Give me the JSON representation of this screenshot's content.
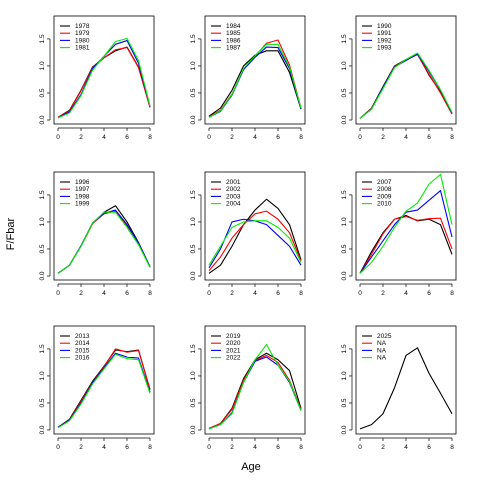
{
  "figure": {
    "xlabel": "Age",
    "ylabel": "F/Fbar"
  },
  "colors": [
    "#000000",
    "#ff0000",
    "#0000ff",
    "#00ee00"
  ],
  "chart_data": [
    {
      "type": "line",
      "xlim": [
        0,
        8
      ],
      "ylim": [
        0,
        1.85
      ],
      "x_ticks": [
        0,
        2,
        4,
        6,
        8
      ],
      "y_ticks": [
        0.0,
        0.5,
        1.0,
        1.5
      ],
      "y_tick_labels": [
        "0.0",
        "0.5",
        "1.0",
        "1.5"
      ],
      "legend_position": "top-left",
      "x": [
        0,
        1,
        2,
        3,
        4,
        5,
        6,
        7,
        8
      ],
      "series": [
        {
          "name": "1978",
          "values": [
            0.05,
            0.18,
            0.55,
            0.98,
            1.15,
            1.28,
            1.35,
            0.98,
            0.24
          ]
        },
        {
          "name": "1979",
          "values": [
            0.05,
            0.17,
            0.54,
            0.97,
            1.15,
            1.3,
            1.34,
            0.97,
            0.23
          ]
        },
        {
          "name": "1980",
          "values": [
            0.04,
            0.15,
            0.47,
            0.95,
            1.18,
            1.4,
            1.47,
            1.05,
            0.25
          ]
        },
        {
          "name": "1981",
          "values": [
            0.04,
            0.13,
            0.45,
            0.92,
            1.18,
            1.45,
            1.51,
            1.1,
            0.26
          ]
        }
      ]
    },
    {
      "type": "line",
      "xlim": [
        0,
        8
      ],
      "ylim": [
        0,
        1.85
      ],
      "x_ticks": [
        0,
        2,
        4,
        6,
        8
      ],
      "y_ticks": [
        0.0,
        0.5,
        1.0,
        1.5
      ],
      "y_tick_labels": [
        "0.0",
        "0.5",
        "1.0",
        "1.5"
      ],
      "legend_position": "top-left",
      "x": [
        0,
        1,
        2,
        3,
        4,
        5,
        6,
        7,
        8
      ],
      "series": [
        {
          "name": "1984",
          "values": [
            0.07,
            0.22,
            0.55,
            1.0,
            1.2,
            1.28,
            1.28,
            0.88,
            0.2
          ]
        },
        {
          "name": "1985",
          "values": [
            0.06,
            0.18,
            0.48,
            0.94,
            1.18,
            1.42,
            1.48,
            1.02,
            0.22
          ]
        },
        {
          "name": "1986",
          "values": [
            0.05,
            0.16,
            0.46,
            0.93,
            1.16,
            1.35,
            1.34,
            0.95,
            0.21
          ]
        },
        {
          "name": "1987",
          "values": [
            0.05,
            0.17,
            0.47,
            0.95,
            1.19,
            1.4,
            1.4,
            0.98,
            0.22
          ]
        }
      ]
    },
    {
      "type": "line",
      "xlim": [
        0,
        8
      ],
      "ylim": [
        0,
        1.85
      ],
      "x_ticks": [
        0,
        2,
        4,
        6,
        8
      ],
      "y_ticks": [
        0.0,
        0.5,
        1.0,
        1.5
      ],
      "y_tick_labels": [
        "0.0",
        "0.5",
        "1.0",
        "1.5"
      ],
      "legend_position": "top-left",
      "x": [
        0,
        1,
        2,
        3,
        4,
        5,
        6,
        7,
        8
      ],
      "series": [
        {
          "name": "1990",
          "values": [
            0.03,
            0.22,
            0.62,
            1.0,
            1.12,
            1.22,
            0.83,
            0.52,
            0.12
          ]
        },
        {
          "name": "1991",
          "values": [
            0.03,
            0.21,
            0.6,
            0.99,
            1.11,
            1.21,
            0.85,
            0.5,
            0.11
          ]
        },
        {
          "name": "1992",
          "values": [
            0.03,
            0.2,
            0.6,
            0.98,
            1.1,
            1.22,
            0.9,
            0.55,
            0.13
          ]
        },
        {
          "name": "1993",
          "values": [
            0.03,
            0.2,
            0.58,
            0.97,
            1.12,
            1.24,
            0.92,
            0.56,
            0.14
          ]
        }
      ]
    },
    {
      "type": "line",
      "xlim": [
        0,
        8
      ],
      "ylim": [
        0,
        1.85
      ],
      "x_ticks": [
        0,
        2,
        4,
        6,
        8
      ],
      "y_ticks": [
        0.0,
        0.5,
        1.0,
        1.5
      ],
      "y_tick_labels": [
        "0.0",
        "0.5",
        "1.0",
        "1.5"
      ],
      "legend_position": "top-left",
      "x": [
        0,
        1,
        2,
        3,
        4,
        5,
        6,
        7,
        8
      ],
      "series": [
        {
          "name": "1996",
          "values": [
            0.05,
            0.2,
            0.55,
            0.97,
            1.18,
            1.3,
            1.0,
            0.62,
            0.17
          ]
        },
        {
          "name": "1997",
          "values": [
            0.05,
            0.2,
            0.56,
            0.97,
            1.15,
            1.2,
            0.92,
            0.6,
            0.16
          ]
        },
        {
          "name": "1998",
          "values": [
            0.05,
            0.2,
            0.56,
            0.98,
            1.16,
            1.22,
            0.95,
            0.61,
            0.17
          ]
        },
        {
          "name": "1999",
          "values": [
            0.05,
            0.2,
            0.55,
            0.98,
            1.18,
            1.18,
            0.9,
            0.58,
            0.16
          ]
        }
      ]
    },
    {
      "type": "line",
      "xlim": [
        0,
        8
      ],
      "ylim": [
        0,
        1.85
      ],
      "x_ticks": [
        0,
        2,
        4,
        6,
        8
      ],
      "y_ticks": [
        0.0,
        0.5,
        1.0,
        1.5
      ],
      "y_tick_labels": [
        "0.0",
        "0.5",
        "1.0",
        "1.5"
      ],
      "legend_position": "top-left",
      "x": [
        0,
        1,
        2,
        3,
        4,
        5,
        6,
        7,
        8
      ],
      "series": [
        {
          "name": "2001",
          "values": [
            0.05,
            0.2,
            0.55,
            0.95,
            1.22,
            1.42,
            1.25,
            0.95,
            0.3
          ]
        },
        {
          "name": "2002",
          "values": [
            0.1,
            0.35,
            0.7,
            0.95,
            1.15,
            1.2,
            1.05,
            0.8,
            0.28
          ]
        },
        {
          "name": "2003",
          "values": [
            0.15,
            0.5,
            1.0,
            1.05,
            1.02,
            0.95,
            0.75,
            0.55,
            0.2
          ]
        },
        {
          "name": "2004",
          "values": [
            0.2,
            0.55,
            0.9,
            1.0,
            1.02,
            1.02,
            0.9,
            0.7,
            0.25
          ]
        }
      ]
    },
    {
      "type": "line",
      "xlim": [
        0,
        8
      ],
      "ylim": [
        0,
        1.85
      ],
      "x_ticks": [
        0,
        2,
        4,
        6,
        8
      ],
      "y_ticks": [
        0.0,
        0.5,
        1.0,
        1.5
      ],
      "y_tick_labels": [
        "0.0",
        "0.5",
        "1.0",
        "1.5"
      ],
      "legend_position": "top-left",
      "x": [
        0,
        1,
        2,
        3,
        4,
        5,
        6,
        7,
        8
      ],
      "series": [
        {
          "name": "2007",
          "values": [
            0.05,
            0.45,
            0.8,
            1.05,
            1.12,
            1.02,
            1.05,
            0.95,
            0.4
          ]
        },
        {
          "name": "2008",
          "values": [
            0.05,
            0.4,
            0.78,
            1.05,
            1.1,
            1.03,
            1.06,
            1.07,
            0.5
          ]
        },
        {
          "name": "2009",
          "values": [
            0.05,
            0.35,
            0.65,
            0.95,
            1.18,
            1.22,
            1.4,
            1.58,
            0.72
          ]
        },
        {
          "name": "2010",
          "values": [
            0.05,
            0.25,
            0.55,
            0.9,
            1.2,
            1.35,
            1.7,
            1.88,
            0.95
          ]
        }
      ]
    },
    {
      "type": "line",
      "xlim": [
        0,
        8
      ],
      "ylim": [
        0,
        1.85
      ],
      "x_ticks": [
        0,
        2,
        4,
        6,
        8
      ],
      "y_ticks": [
        0.0,
        0.5,
        1.0,
        1.5
      ],
      "y_tick_labels": [
        "0.0",
        "0.5",
        "1.0",
        "1.5"
      ],
      "legend_position": "top-left",
      "x": [
        0,
        1,
        2,
        3,
        4,
        5,
        6,
        7,
        8
      ],
      "series": [
        {
          "name": "2013",
          "values": [
            0.05,
            0.2,
            0.55,
            0.9,
            1.18,
            1.48,
            1.45,
            1.48,
            0.75
          ]
        },
        {
          "name": "2014",
          "values": [
            0.05,
            0.19,
            0.53,
            0.88,
            1.17,
            1.5,
            1.44,
            1.47,
            0.74
          ]
        },
        {
          "name": "2015",
          "values": [
            0.05,
            0.18,
            0.5,
            0.87,
            1.15,
            1.42,
            1.35,
            1.33,
            0.7
          ]
        },
        {
          "name": "2016",
          "values": [
            0.04,
            0.17,
            0.48,
            0.85,
            1.13,
            1.4,
            1.32,
            1.3,
            0.68
          ]
        }
      ]
    },
    {
      "type": "line",
      "xlim": [
        0,
        8
      ],
      "ylim": [
        0,
        1.85
      ],
      "x_ticks": [
        0,
        2,
        4,
        6,
        8
      ],
      "y_ticks": [
        0.0,
        0.5,
        1.0,
        1.5
      ],
      "y_tick_labels": [
        "0.0",
        "0.5",
        "1.0",
        "1.5"
      ],
      "legend_position": "top-left",
      "x": [
        0,
        1,
        2,
        3,
        4,
        5,
        6,
        7,
        8
      ],
      "series": [
        {
          "name": "2019",
          "values": [
            0.03,
            0.12,
            0.4,
            0.95,
            1.3,
            1.42,
            1.3,
            1.1,
            0.4
          ]
        },
        {
          "name": "2020",
          "values": [
            0.03,
            0.12,
            0.38,
            0.92,
            1.28,
            1.38,
            1.25,
            0.92,
            0.38
          ]
        },
        {
          "name": "2021",
          "values": [
            0.02,
            0.1,
            0.32,
            0.88,
            1.27,
            1.35,
            1.2,
            0.88,
            0.36
          ]
        },
        {
          "name": "2022",
          "values": [
            0.02,
            0.1,
            0.3,
            0.88,
            1.3,
            1.58,
            1.2,
            0.9,
            0.36
          ]
        }
      ]
    },
    {
      "type": "line",
      "xlim": [
        0,
        8
      ],
      "ylim": [
        0,
        1.85
      ],
      "x_ticks": [
        0,
        2,
        4,
        6,
        8
      ],
      "y_ticks": [
        0.0,
        0.5,
        1.0,
        1.5
      ],
      "y_tick_labels": [
        "0.0",
        "0.5",
        "1.0",
        "1.5"
      ],
      "legend_position": "top-left",
      "x": [
        0,
        1,
        2,
        3,
        4,
        5,
        6,
        7,
        8
      ],
      "series": [
        {
          "name": "2025",
          "values": [
            0.02,
            0.1,
            0.3,
            0.78,
            1.38,
            1.52,
            1.05,
            0.68,
            0.3
          ]
        },
        {
          "name": "NA",
          "values": null
        },
        {
          "name": "NA",
          "values": null
        },
        {
          "name": "NA",
          "values": null
        }
      ]
    }
  ]
}
